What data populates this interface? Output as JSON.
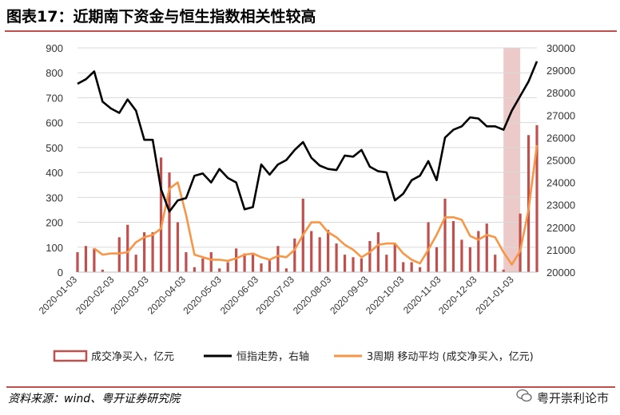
{
  "header": {
    "title": "图表17：近期南下资金与恒生指数相关性较高"
  },
  "footer": {
    "source": "资料来源：wind、粤开证券研究院",
    "watermark": "粤开崇利论市"
  },
  "chart_data": {
    "type": "bar+line",
    "title": "图表17：近期南下资金与恒生指数相关性较高",
    "y_left": {
      "ylim": [
        0,
        900
      ],
      "ticks": [
        "0",
        "100",
        "200",
        "300",
        "400",
        "500",
        "600",
        "700",
        "800",
        "900"
      ]
    },
    "y_right": {
      "ylim": [
        20000,
        30000
      ],
      "ticks": [
        "20000",
        "21000",
        "22000",
        "23000",
        "24000",
        "25000",
        "26000",
        "27000",
        "28000",
        "29000",
        "30000"
      ]
    },
    "x_ticks": [
      "2020-01-03",
      "2020-02-03",
      "2020-03-03",
      "2020-04-03",
      "2020-05-03",
      "2020-06-03",
      "2020-07-03",
      "2020-08-03",
      "2020-09-03",
      "2020-10-03",
      "2020-11-03",
      "2020-12-03",
      "2021-01-03"
    ],
    "x_range": [
      "2020-01-03",
      "2021-01-22"
    ],
    "highlight_band": {
      "from": "2020-12-25",
      "to": "2021-01-08",
      "color": "#e6b8b7"
    },
    "series": [
      {
        "name": "成交净买入，亿元",
        "kind": "bar",
        "axis": "left",
        "color": "#c0504d",
        "x": [
          "2020-01-03",
          "2020-01-10",
          "2020-01-17",
          "2020-01-24",
          "2020-01-31",
          "2020-02-07",
          "2020-02-14",
          "2020-02-21",
          "2020-02-28",
          "2020-03-06",
          "2020-03-13",
          "2020-03-20",
          "2020-03-27",
          "2020-04-03",
          "2020-04-10",
          "2020-04-17",
          "2020-04-24",
          "2020-05-01",
          "2020-05-08",
          "2020-05-15",
          "2020-05-22",
          "2020-05-29",
          "2020-06-05",
          "2020-06-12",
          "2020-06-19",
          "2020-06-26",
          "2020-07-03",
          "2020-07-10",
          "2020-07-17",
          "2020-07-24",
          "2020-07-31",
          "2020-08-07",
          "2020-08-14",
          "2020-08-21",
          "2020-08-28",
          "2020-09-04",
          "2020-09-11",
          "2020-09-18",
          "2020-09-25",
          "2020-10-02",
          "2020-10-09",
          "2020-10-16",
          "2020-10-23",
          "2020-10-30",
          "2020-11-06",
          "2020-11-13",
          "2020-11-20",
          "2020-11-27",
          "2020-12-04",
          "2020-12-11",
          "2020-12-18",
          "2020-12-25",
          "2021-01-01",
          "2021-01-08",
          "2021-01-15",
          "2021-01-22"
        ],
        "values": [
          80,
          105,
          95,
          10,
          0,
          140,
          190,
          70,
          160,
          160,
          460,
          400,
          200,
          80,
          20,
          55,
          80,
          15,
          40,
          95,
          75,
          70,
          35,
          50,
          105,
          15,
          135,
          295,
          165,
          140,
          170,
          115,
          70,
          60,
          55,
          125,
          160,
          70,
          115,
          40,
          40,
          20,
          200,
          100,
          295,
          205,
          130,
          100,
          165,
          195,
          70,
          10,
          0,
          235,
          550,
          590
        ]
      },
      {
        "name": "恒指走势，右轴",
        "kind": "line",
        "axis": "right",
        "color": "#000000",
        "x": [
          "2020-01-03",
          "2020-01-10",
          "2020-01-17",
          "2020-01-24",
          "2020-01-31",
          "2020-02-07",
          "2020-02-14",
          "2020-02-21",
          "2020-02-28",
          "2020-03-06",
          "2020-03-13",
          "2020-03-20",
          "2020-03-27",
          "2020-04-03",
          "2020-04-10",
          "2020-04-17",
          "2020-04-24",
          "2020-05-01",
          "2020-05-08",
          "2020-05-15",
          "2020-05-22",
          "2020-05-29",
          "2020-06-05",
          "2020-06-12",
          "2020-06-19",
          "2020-06-26",
          "2020-07-03",
          "2020-07-10",
          "2020-07-17",
          "2020-07-24",
          "2020-07-31",
          "2020-08-07",
          "2020-08-14",
          "2020-08-21",
          "2020-08-28",
          "2020-09-04",
          "2020-09-11",
          "2020-09-18",
          "2020-09-25",
          "2020-10-02",
          "2020-10-09",
          "2020-10-16",
          "2020-10-23",
          "2020-10-30",
          "2020-11-06",
          "2020-11-13",
          "2020-11-20",
          "2020-11-27",
          "2020-12-04",
          "2020-12-11",
          "2020-12-18",
          "2020-12-25",
          "2021-01-01",
          "2021-01-08",
          "2021-01-15",
          "2021-01-22"
        ],
        "values": [
          28400,
          28600,
          28950,
          27600,
          27300,
          27100,
          27700,
          27200,
          25900,
          25900,
          23700,
          22700,
          23200,
          23300,
          24300,
          24400,
          24000,
          24600,
          24200,
          24000,
          22800,
          22900,
          24800,
          24350,
          24800,
          25000,
          25450,
          25800,
          25100,
          24750,
          24600,
          24550,
          25200,
          25150,
          25450,
          24700,
          24500,
          24450,
          23200,
          23500,
          24100,
          24300,
          24950,
          24100,
          26000,
          26350,
          26500,
          26900,
          26850,
          26500,
          26500,
          26350,
          27200,
          27850,
          28500,
          29400
        ]
      },
      {
        "name": "3周期 移动平均 (成交净买入，亿元)",
        "kind": "line",
        "axis": "left",
        "color": "#f79646",
        "x": [
          "2020-01-03",
          "2020-01-10",
          "2020-01-17",
          "2020-01-24",
          "2020-01-31",
          "2020-02-07",
          "2020-02-14",
          "2020-02-21",
          "2020-02-28",
          "2020-03-06",
          "2020-03-13",
          "2020-03-20",
          "2020-03-27",
          "2020-04-03",
          "2020-04-10",
          "2020-04-17",
          "2020-04-24",
          "2020-05-01",
          "2020-05-08",
          "2020-05-15",
          "2020-05-22",
          "2020-05-29",
          "2020-06-05",
          "2020-06-12",
          "2020-06-19",
          "2020-06-26",
          "2020-07-03",
          "2020-07-10",
          "2020-07-17",
          "2020-07-24",
          "2020-07-31",
          "2020-08-07",
          "2020-08-14",
          "2020-08-21",
          "2020-08-28",
          "2020-09-04",
          "2020-09-11",
          "2020-09-18",
          "2020-09-25",
          "2020-10-02",
          "2020-10-09",
          "2020-10-16",
          "2020-10-23",
          "2020-10-30",
          "2020-11-06",
          "2020-11-13",
          "2020-11-20",
          "2020-11-27",
          "2020-12-04",
          "2020-12-11",
          "2020-12-18",
          "2020-12-25",
          "2021-01-01",
          "2021-01-08",
          "2021-01-15",
          "2021-01-22"
        ],
        "values": [
          null,
          null,
          95,
          70,
          75,
          75,
          80,
          120,
          140,
          150,
          175,
          335,
          360,
          230,
          70,
          60,
          50,
          50,
          45,
          55,
          70,
          75,
          60,
          50,
          65,
          60,
          90,
          150,
          200,
          200,
          160,
          140,
          110,
          90,
          60,
          80,
          110,
          115,
          115,
          75,
          50,
          35,
          90,
          150,
          220,
          220,
          210,
          145,
          130,
          150,
          140,
          80,
          30,
          85,
          250,
          510
        ]
      }
    ],
    "legend": {
      "placement": "bottom"
    }
  }
}
